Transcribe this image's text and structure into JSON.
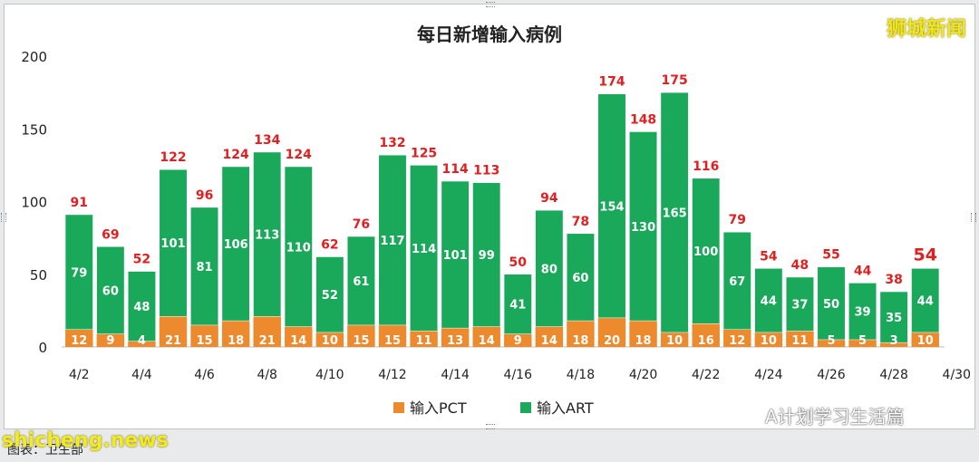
{
  "brand": "狮城新闻",
  "watermark": "shicheng.news",
  "wechat_account": "A计划学习生活篇",
  "caption": "图表：卫生部",
  "colors": {
    "pct": "#ed8a2e",
    "art": "#1aa95b",
    "total_label": "#e02020"
  },
  "chart_data": {
    "type": "bar",
    "stacked": true,
    "title": "每日新增输入病例",
    "xlabel": "",
    "ylabel": "",
    "ylim": [
      0,
      200
    ],
    "yticks": [
      0,
      50,
      100,
      150,
      200
    ],
    "grid": false,
    "legend": "bottom",
    "categories": [
      "4/2",
      "4/3",
      "4/4",
      "4/5",
      "4/6",
      "4/7",
      "4/8",
      "4/9",
      "4/10",
      "4/11",
      "4/12",
      "4/13",
      "4/14",
      "4/15",
      "4/16",
      "4/17",
      "4/18",
      "4/19",
      "4/20",
      "4/21",
      "4/22",
      "4/23",
      "4/24",
      "4/25",
      "4/26",
      "4/27",
      "4/28",
      "4/29"
    ],
    "x_tick_labels": [
      "4/2",
      "4/4",
      "4/6",
      "4/8",
      "4/10",
      "4/12",
      "4/14",
      "4/16",
      "4/18",
      "4/20",
      "4/22",
      "4/24",
      "4/26",
      "4/28",
      "4/30"
    ],
    "series": [
      {
        "name": "输入PCT",
        "values": [
          12,
          9,
          4,
          21,
          15,
          18,
          21,
          14,
          10,
          15,
          15,
          11,
          13,
          14,
          9,
          14,
          18,
          20,
          18,
          10,
          16,
          12,
          10,
          11,
          5,
          5,
          3,
          10
        ]
      },
      {
        "name": "输入ART",
        "values": [
          79,
          60,
          48,
          101,
          81,
          106,
          113,
          110,
          52,
          61,
          117,
          114,
          101,
          99,
          41,
          80,
          60,
          154,
          130,
          165,
          100,
          67,
          44,
          37,
          50,
          39,
          35,
          44
        ]
      }
    ],
    "totals": [
      91,
      69,
      52,
      122,
      96,
      124,
      134,
      124,
      62,
      76,
      132,
      125,
      114,
      113,
      50,
      94,
      78,
      174,
      148,
      175,
      116,
      79,
      54,
      48,
      55,
      44,
      38,
      54
    ]
  }
}
